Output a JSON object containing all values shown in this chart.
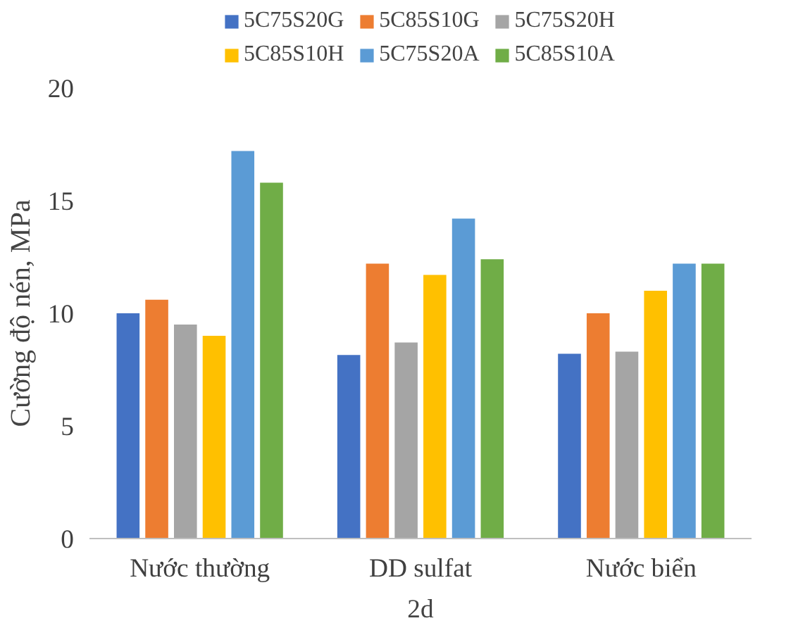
{
  "chart_data": {
    "type": "bar",
    "categories": [
      "Nước thường",
      "DD sulfat",
      "Nước biển"
    ],
    "xlabel": "2d",
    "ylabel": "Cường độ nén, MPa",
    "ylim": [
      0,
      20
    ],
    "yticks": [
      0,
      5,
      10,
      15,
      20
    ],
    "grid": false,
    "legend": "top",
    "series": [
      {
        "name": "5C75S20G",
        "color": "#4472c4",
        "values": [
          10.0,
          8.15,
          8.2
        ]
      },
      {
        "name": "5C85S10G",
        "color": "#ed7d31",
        "values": [
          10.6,
          12.2,
          10.0
        ]
      },
      {
        "name": "5C75S20H",
        "color": "#a5a5a5",
        "values": [
          9.5,
          8.7,
          8.3
        ]
      },
      {
        "name": "5C85S10H",
        "color": "#ffc000",
        "values": [
          9.0,
          11.7,
          11.0
        ]
      },
      {
        "name": "5C75S20A",
        "color": "#5b9bd5",
        "values": [
          17.2,
          14.2,
          12.2
        ]
      },
      {
        "name": "5C85S10A",
        "color": "#70ad47",
        "values": [
          15.8,
          12.4,
          12.2
        ]
      }
    ]
  }
}
